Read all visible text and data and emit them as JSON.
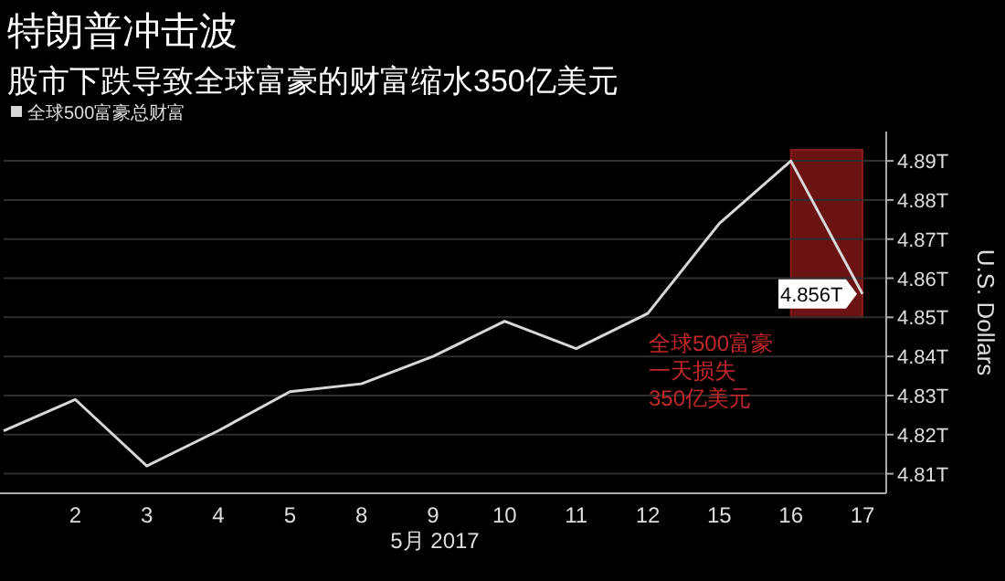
{
  "chart_data": {
    "type": "line",
    "title": "特朗普冲击波",
    "subtitle": "股市下跌导致全球富豪的财富缩水350亿美元",
    "xlabel": "5月 2017",
    "ylabel": "U.S. Dollars",
    "categories": [
      null,
      "2",
      "3",
      "4",
      "5",
      "8",
      "9",
      "10",
      "11",
      "12",
      "15",
      "16",
      "17"
    ],
    "series": [
      {
        "name": "全球500富豪总财富",
        "color": "#d8d8d8",
        "values": [
          4.821,
          4.829,
          4.812,
          4.821,
          4.831,
          4.833,
          4.84,
          4.849,
          4.842,
          4.851,
          4.874,
          4.89,
          4.856
        ],
        "value_labels": [
          null,
          null,
          null,
          null,
          null,
          null,
          null,
          null,
          null,
          null,
          null,
          null,
          "4.856T"
        ]
      }
    ],
    "ylim": [
      4.805,
      4.8975
    ],
    "yticks": [
      {
        "value": 4.81,
        "label": "4.81T"
      },
      {
        "value": 4.82,
        "label": "4.82T"
      },
      {
        "value": 4.83,
        "label": "4.83T"
      },
      {
        "value": 4.84,
        "label": "4.84T"
      },
      {
        "value": 4.85,
        "label": "4.85T"
      },
      {
        "value": 4.86,
        "label": "4.86T"
      },
      {
        "value": 4.87,
        "label": "4.87T"
      },
      {
        "value": 4.88,
        "label": "4.88T"
      },
      {
        "value": 4.89,
        "label": "4.89T"
      }
    ],
    "bands": [
      {
        "axis": "x",
        "from": "16",
        "to": "17",
        "color": "#6b1212"
      }
    ],
    "annotations": [
      "全球500富豪",
      "一天损失",
      "350亿美元"
    ],
    "grid": "y",
    "legend": "top left",
    "marker": "none",
    "line_style": "solid"
  }
}
